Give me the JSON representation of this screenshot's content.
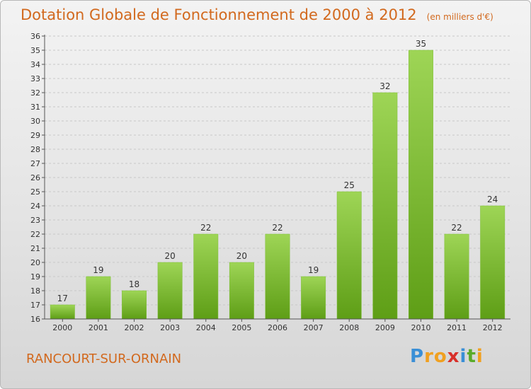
{
  "title": "Dotation Globale de Fonctionnement de 2000 à 2012",
  "subtitle": "(en milliers d'€)",
  "commune": "RANCOURT-SUR-ORNAIN",
  "logo": {
    "p": "P",
    "r": "r",
    "o": "o",
    "x": "x",
    "i": "i",
    "t": "t",
    "i2": "i"
  },
  "colors": {
    "title": "#d2691e",
    "bar_top": "#9ed556",
    "bar_bottom": "#5e9e16",
    "grid": "#c8c8c8"
  },
  "chart_data": {
    "type": "bar",
    "categories": [
      "2000",
      "2001",
      "2002",
      "2003",
      "2004",
      "2005",
      "2006",
      "2007",
      "2008",
      "2009",
      "2010",
      "2011",
      "2012"
    ],
    "values": [
      17,
      19,
      18,
      20,
      22,
      20,
      22,
      19,
      25,
      32,
      35,
      22,
      24
    ],
    "ylim": [
      16,
      36
    ],
    "yticks": [
      16,
      17,
      18,
      19,
      20,
      21,
      22,
      23,
      24,
      25,
      26,
      27,
      28,
      29,
      30,
      31,
      32,
      33,
      34,
      35,
      36
    ],
    "grid": true,
    "data_labels": true
  }
}
